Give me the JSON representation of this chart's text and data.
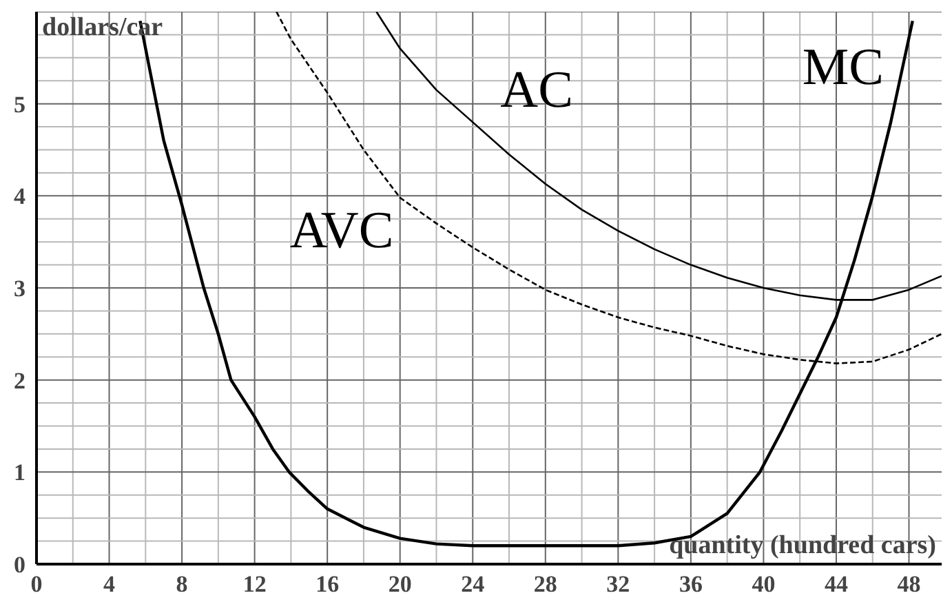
{
  "chart_data": {
    "type": "line",
    "xlabel": "quantity (hundred cars)",
    "ylabel": "dollars/car",
    "xlim": [
      0,
      49.8
    ],
    "ylim": [
      0,
      6.0
    ],
    "xticks": [
      0,
      4,
      8,
      12,
      16,
      20,
      24,
      28,
      32,
      36,
      40,
      44,
      48
    ],
    "yticks": [
      0,
      1,
      2,
      3,
      4,
      5
    ],
    "grid": true,
    "legend": false,
    "marker": "none",
    "series": [
      {
        "name": "AC",
        "color": "#000000",
        "line_style": "solid",
        "x": [
          18.7,
          20,
          22,
          24,
          26,
          28,
          30,
          32,
          34,
          36,
          38,
          40,
          42,
          44,
          46,
          48,
          49.8
        ],
        "values": [
          6.0,
          5.6,
          5.15,
          4.8,
          4.45,
          4.13,
          3.85,
          3.62,
          3.42,
          3.25,
          3.11,
          3.0,
          2.92,
          2.87,
          2.87,
          2.98,
          3.13
        ]
      },
      {
        "name": "AVC",
        "color": "#000000",
        "line_style": "dashed",
        "x": [
          13.2,
          14,
          16,
          18,
          20,
          22,
          24,
          26,
          28,
          30,
          32,
          34,
          36,
          38,
          40,
          42,
          44,
          46,
          48,
          49.8
        ],
        "values": [
          6.0,
          5.7,
          5.12,
          4.5,
          3.98,
          3.7,
          3.44,
          3.2,
          2.98,
          2.82,
          2.68,
          2.57,
          2.48,
          2.37,
          2.28,
          2.22,
          2.18,
          2.2,
          2.33,
          2.5
        ]
      },
      {
        "name": "MC",
        "color": "#000000",
        "line_style": "solid",
        "x": [
          5.7,
          7,
          8,
          9.2,
          10,
          10.7,
          12,
          13,
          13.9,
          15,
          16,
          18,
          20,
          22,
          24,
          28,
          32,
          34,
          36,
          38,
          39.8,
          41,
          42,
          43,
          44,
          45,
          46,
          47,
          48.2
        ],
        "values": [
          5.9,
          4.6,
          3.9,
          3.0,
          2.5,
          2.0,
          1.6,
          1.25,
          1.0,
          0.78,
          0.6,
          0.4,
          0.28,
          0.22,
          0.2,
          0.2,
          0.2,
          0.23,
          0.3,
          0.55,
          1.0,
          1.45,
          1.85,
          2.25,
          2.68,
          3.3,
          4.0,
          4.8,
          5.9
        ]
      }
    ]
  }
}
